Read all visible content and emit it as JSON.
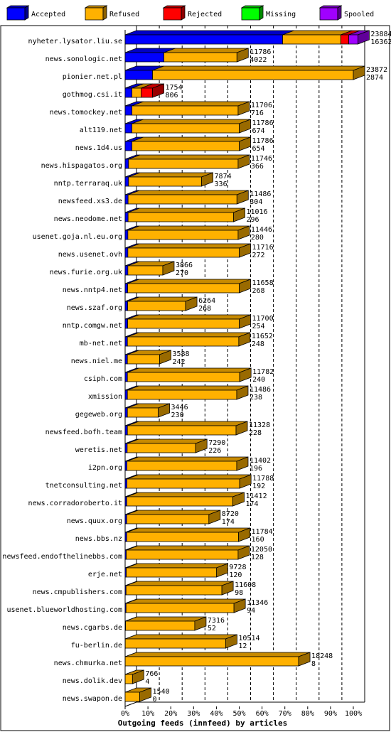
{
  "chart_data": {
    "type": "bar",
    "orientation": "horizontal",
    "stacked": true,
    "xlabel": "Outgoing feeds (innfeed) by articles",
    "x_ticks": [
      "0%",
      "10%",
      "20%",
      "30%",
      "40%",
      "50%",
      "60%",
      "70%",
      "80%",
      "90%",
      "100%"
    ],
    "xlim": [
      0,
      100
    ],
    "legend_placement": "top",
    "series": [
      {
        "name": "Accepted",
        "color": "#0000ff"
      },
      {
        "name": "Refused",
        "color": "#ffb100"
      },
      {
        "name": "Rejected",
        "color": "#ff0000"
      },
      {
        "name": "Missing",
        "color": "#00ff00"
      },
      {
        "name": "Spooled",
        "color": "#a000ff"
      }
    ],
    "rows": [
      {
        "host": "nyheter.lysator.liu.se",
        "offered": "23884",
        "accepted_count": "16362",
        "pct": [
          69.0,
          25.5,
          3.5,
          0,
          4.0
        ]
      },
      {
        "host": "news.sonologic.net",
        "offered": "11786",
        "accepted_count": "4022",
        "pct": [
          17.0,
          32.0,
          0,
          0,
          0
        ]
      },
      {
        "host": "pionier.net.pl",
        "offered": "23872",
        "accepted_count": "2874",
        "pct": [
          12.0,
          88.0,
          0,
          0,
          0
        ]
      },
      {
        "host": "gothmog.csi.it",
        "offered": "1754",
        "accepted_count": "806",
        "pct": [
          3.0,
          4.0,
          5.0,
          0,
          0
        ]
      },
      {
        "host": "news.tomockey.net",
        "offered": "11706",
        "accepted_count": "716",
        "pct": [
          3.0,
          46.5,
          0,
          0,
          0
        ]
      },
      {
        "host": "alt119.net",
        "offered": "11786",
        "accepted_count": "674",
        "pct": [
          3.0,
          47.0,
          0,
          0,
          0
        ]
      },
      {
        "host": "news.1d4.us",
        "offered": "11786",
        "accepted_count": "654",
        "pct": [
          3.0,
          47.0,
          0,
          0,
          0
        ]
      },
      {
        "host": "news.hispagatos.org",
        "offered": "11746",
        "accepted_count": "366",
        "pct": [
          1.5,
          48.0,
          0,
          0,
          0
        ]
      },
      {
        "host": "nntp.terraraq.uk",
        "offered": "7874",
        "accepted_count": "336",
        "pct": [
          1.5,
          32.0,
          0,
          0,
          0
        ]
      },
      {
        "host": "newsfeed.xs3.de",
        "offered": "11486",
        "accepted_count": "304",
        "pct": [
          1.3,
          47.7,
          0,
          0,
          0
        ]
      },
      {
        "host": "news.neodome.net",
        "offered": "11016",
        "accepted_count": "296",
        "pct": [
          1.3,
          46.2,
          0,
          0,
          0
        ]
      },
      {
        "host": "usenet.goja.nl.eu.org",
        "offered": "11446",
        "accepted_count": "280",
        "pct": [
          1.2,
          48.3,
          0,
          0,
          0
        ]
      },
      {
        "host": "news.usenet.ovh",
        "offered": "11716",
        "accepted_count": "272",
        "pct": [
          1.2,
          48.8,
          0,
          0,
          0
        ]
      },
      {
        "host": "news.furie.org.uk",
        "offered": "3866",
        "accepted_count": "270",
        "pct": [
          1.2,
          15.3,
          0,
          0,
          0
        ]
      },
      {
        "host": "news.nntp4.net",
        "offered": "11658",
        "accepted_count": "268",
        "pct": [
          1.1,
          48.9,
          0,
          0,
          0
        ]
      },
      {
        "host": "news.szaf.org",
        "offered": "6264",
        "accepted_count": "268",
        "pct": [
          1.1,
          25.4,
          0,
          0,
          0
        ]
      },
      {
        "host": "nntp.comgw.net",
        "offered": "11700",
        "accepted_count": "254",
        "pct": [
          1.1,
          48.9,
          0,
          0,
          0
        ]
      },
      {
        "host": "mb-net.net",
        "offered": "11652",
        "accepted_count": "248",
        "pct": [
          1.0,
          48.8,
          0,
          0,
          0
        ]
      },
      {
        "host": "news.niel.me",
        "offered": "3588",
        "accepted_count": "242",
        "pct": [
          1.0,
          14.1,
          0,
          0,
          0
        ]
      },
      {
        "host": "csiph.com",
        "offered": "11782",
        "accepted_count": "240",
        "pct": [
          1.0,
          49.2,
          0,
          0,
          0
        ]
      },
      {
        "host": "xmission",
        "offered": "11486",
        "accepted_count": "238",
        "pct": [
          1.0,
          47.9,
          0,
          0,
          0
        ]
      },
      {
        "host": "gegeweb.org",
        "offered": "3446",
        "accepted_count": "230",
        "pct": [
          1.0,
          13.5,
          0,
          0,
          0
        ]
      },
      {
        "host": "newsfeed.bofh.team",
        "offered": "11328",
        "accepted_count": "228",
        "pct": [
          1.0,
          47.6,
          0,
          0,
          0
        ]
      },
      {
        "host": "weretis.net",
        "offered": "7290",
        "accepted_count": "226",
        "pct": [
          0.9,
          30.0,
          0,
          0,
          0
        ]
      },
      {
        "host": "i2pn.org",
        "offered": "11402",
        "accepted_count": "196",
        "pct": [
          0.8,
          48.1,
          0,
          0,
          0
        ]
      },
      {
        "host": "tnetconsulting.net",
        "offered": "11788",
        "accepted_count": "192",
        "pct": [
          0.8,
          49.4,
          0,
          0,
          0
        ]
      },
      {
        "host": "news.corradoroberto.it",
        "offered": "11412",
        "accepted_count": "174",
        "pct": [
          0.7,
          46.5,
          0,
          0,
          0
        ]
      },
      {
        "host": "news.quux.org",
        "offered": "8720",
        "accepted_count": "174",
        "pct": [
          0.7,
          36.0,
          0,
          0,
          0
        ]
      },
      {
        "host": "news.bbs.nz",
        "offered": "11784",
        "accepted_count": "160",
        "pct": [
          0.7,
          49.0,
          0,
          0,
          0
        ]
      },
      {
        "host": "newsfeed.endofthelinebbs.com",
        "offered": "12050",
        "accepted_count": "128",
        "pct": [
          0.5,
          49.0,
          0,
          0,
          0
        ]
      },
      {
        "host": "erje.net",
        "offered": "9728",
        "accepted_count": "120",
        "pct": [
          0.5,
          39.5,
          0,
          0,
          0
        ]
      },
      {
        "host": "news.cmpublishers.com",
        "offered": "11608",
        "accepted_count": "98",
        "pct": [
          0.4,
          42.0,
          0,
          0,
          0
        ]
      },
      {
        "host": "usenet.blueworldhosting.com",
        "offered": "11346",
        "accepted_count": "94",
        "pct": [
          0.4,
          47.3,
          0,
          0,
          0
        ]
      },
      {
        "host": "news.cgarbs.de",
        "offered": "7316",
        "accepted_count": "52",
        "pct": [
          0.2,
          30.3,
          0,
          0,
          0
        ]
      },
      {
        "host": "fu-berlin.de",
        "offered": "10514",
        "accepted_count": "12",
        "pct": [
          0.05,
          44.0,
          0,
          0,
          0
        ]
      },
      {
        "host": "news.chmurka.net",
        "offered": "18248",
        "accepted_count": "8",
        "pct": [
          0.03,
          76.0,
          0,
          0,
          0
        ]
      },
      {
        "host": "news.dolik.dev",
        "offered": "766",
        "accepted_count": "4",
        "pct": [
          0.02,
          3.2,
          0,
          0,
          0
        ]
      },
      {
        "host": "news.swapon.de",
        "offered": "1540",
        "accepted_count": "0",
        "pct": [
          0,
          6.4,
          0,
          0,
          0
        ]
      }
    ]
  }
}
